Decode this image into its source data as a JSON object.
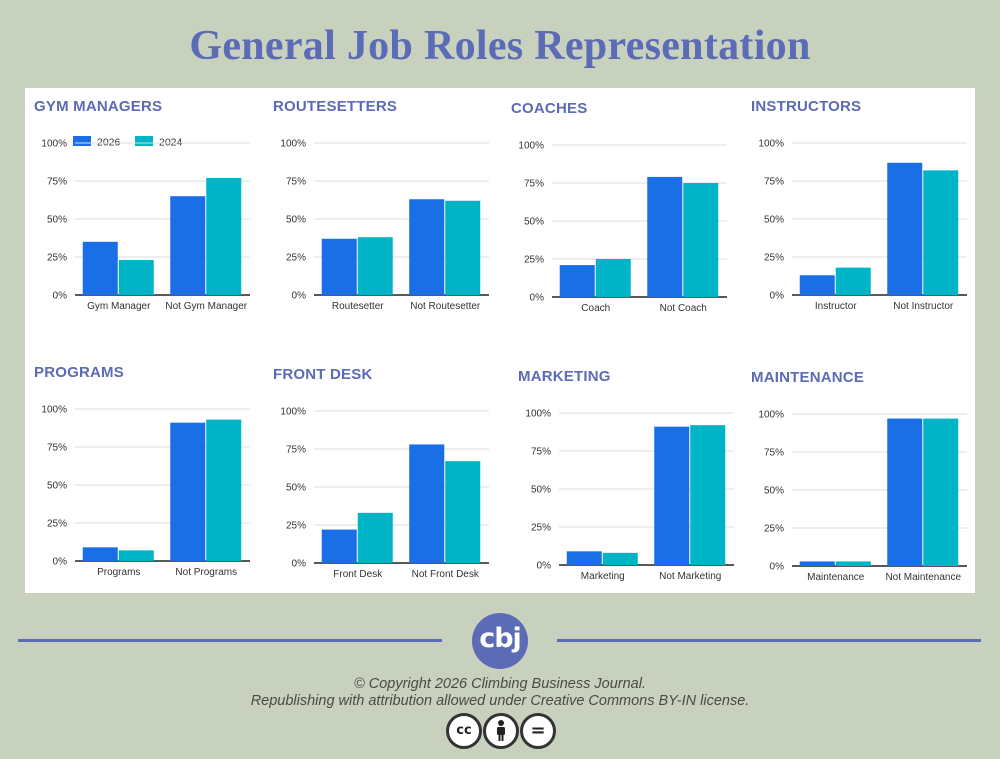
{
  "page": {
    "title": "General Job Roles Representation"
  },
  "legend": {
    "series": [
      "2026",
      "2024"
    ]
  },
  "colors": {
    "s2026": "#1a6fe6",
    "s2024": "#00b4c8",
    "title": "#5b6bb5",
    "bg": "#c8d1bd"
  },
  "footer": {
    "logo_text": "cbj",
    "copyright": "© Copyright 2026 Climbing Business Journal.",
    "license": "Republishing with attribution allowed under Creative Commons BY-IN license.",
    "icons": [
      "cc-icon",
      "by-icon",
      "nd-icon"
    ],
    "cc_text": "cc",
    "nd_text": "="
  },
  "chart_data": [
    {
      "type": "bar",
      "title": "GYM MANAGERS",
      "categories": [
        "Gym Manager",
        "Not Gym Manager"
      ],
      "series": [
        {
          "name": "2026",
          "values": [
            35,
            65
          ]
        },
        {
          "name": "2024",
          "values": [
            23,
            77
          ]
        }
      ],
      "yticks": [
        "0%",
        "25%",
        "50%",
        "75%",
        "100%"
      ],
      "ylim": [
        0,
        100
      ],
      "legend": "top"
    },
    {
      "type": "bar",
      "title": "ROUTESETTERS",
      "categories": [
        "Routesetter",
        "Not Routesetter"
      ],
      "series": [
        {
          "name": "2026",
          "values": [
            37,
            63
          ]
        },
        {
          "name": "2024",
          "values": [
            38,
            62
          ]
        }
      ],
      "yticks": [
        "0%",
        "25%",
        "50%",
        "75%",
        "100%"
      ],
      "ylim": [
        0,
        100
      ]
    },
    {
      "type": "bar",
      "title": "COACHES",
      "categories": [
        "Coach",
        "Not Coach"
      ],
      "series": [
        {
          "name": "2026",
          "values": [
            21,
            79
          ]
        },
        {
          "name": "2024",
          "values": [
            25,
            75
          ]
        }
      ],
      "yticks": [
        "0%",
        "25%",
        "50%",
        "75%",
        "100%"
      ],
      "ylim": [
        0,
        100
      ]
    },
    {
      "type": "bar",
      "title": "INSTRUCTORS",
      "categories": [
        "Instructor",
        "Not Instructor"
      ],
      "series": [
        {
          "name": "2026",
          "values": [
            13,
            87
          ]
        },
        {
          "name": "2024",
          "values": [
            18,
            82
          ]
        }
      ],
      "yticks": [
        "0%",
        "25%",
        "50%",
        "75%",
        "100%"
      ],
      "ylim": [
        0,
        100
      ]
    },
    {
      "type": "bar",
      "title": "PROGRAMS",
      "categories": [
        "Programs",
        "Not Programs"
      ],
      "series": [
        {
          "name": "2026",
          "values": [
            9,
            91
          ]
        },
        {
          "name": "2024",
          "values": [
            7,
            93
          ]
        }
      ],
      "yticks": [
        "0%",
        "25%",
        "50%",
        "75%",
        "100%"
      ],
      "ylim": [
        0,
        100
      ]
    },
    {
      "type": "bar",
      "title": "FRONT DESK",
      "categories": [
        "Front Desk",
        "Not Front Desk"
      ],
      "series": [
        {
          "name": "2026",
          "values": [
            22,
            78
          ]
        },
        {
          "name": "2024",
          "values": [
            33,
            67
          ]
        }
      ],
      "yticks": [
        "0%",
        "25%",
        "50%",
        "75%",
        "100%"
      ],
      "ylim": [
        0,
        100
      ]
    },
    {
      "type": "bar",
      "title": "MARKETING",
      "categories": [
        "Marketing",
        "Not Marketing"
      ],
      "series": [
        {
          "name": "2026",
          "values": [
            9,
            91
          ]
        },
        {
          "name": "2024",
          "values": [
            8,
            92
          ]
        }
      ],
      "yticks": [
        "0%",
        "25%",
        "50%",
        "75%",
        "100%"
      ],
      "ylim": [
        0,
        100
      ]
    },
    {
      "type": "bar",
      "title": "MAINTENANCE",
      "categories": [
        "Maintenance",
        "Not Maintenance"
      ],
      "series": [
        {
          "name": "2026",
          "values": [
            3,
            97
          ]
        },
        {
          "name": "2024",
          "values": [
            3,
            97
          ]
        }
      ],
      "yticks": [
        "0%",
        "25%",
        "50%",
        "75%",
        "100%"
      ],
      "ylim": [
        0,
        100
      ]
    }
  ]
}
